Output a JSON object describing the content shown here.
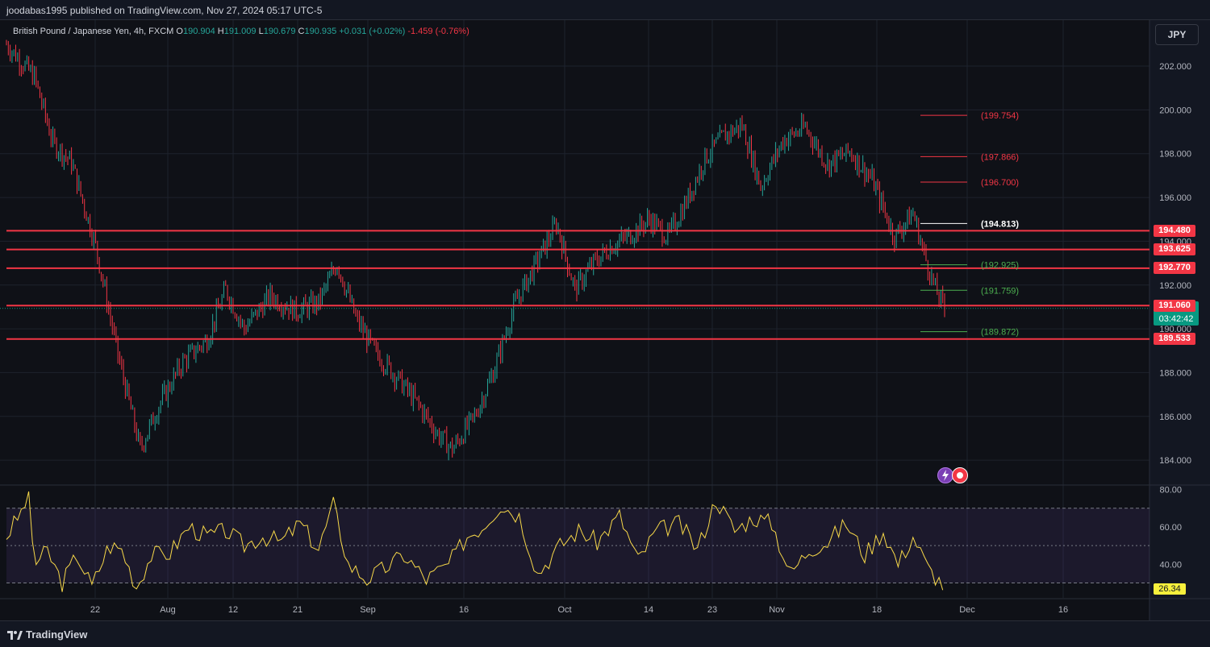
{
  "header": {
    "published_line": "joodabas1995 published on TradingView.com, Nov 27, 2024 05:17 UTC-5"
  },
  "legend": {
    "symbol": "British Pound / Japanese Yen, 4h, FXCM",
    "o_label": "O",
    "o_value": "190.904",
    "h_label": "H",
    "h_value": "191.009",
    "l_label": "L",
    "l_value": "190.679",
    "c_label": "C",
    "c_value": "190.935",
    "change": "+0.031 (+0.02%)",
    "extra": "-1.459 (-0.76%)"
  },
  "currency_button": "JPY",
  "footer": {
    "brand": "TradingView"
  },
  "colors": {
    "bg": "#0f1117",
    "up": "#26a69a",
    "down": "#f23645",
    "rsi": "#f7d849",
    "grid": "#1e222d"
  },
  "chart_data": {
    "type": "candlestick",
    "title": "British Pound / Japanese Yen, 4h, FXCM",
    "ylim": [
      182.9,
      204.1
    ],
    "y_ticks": [
      "202.000",
      "200.000",
      "198.000",
      "196.000",
      "194.000",
      "192.000",
      "190.000",
      "188.000",
      "186.000",
      "184.000"
    ],
    "x_ticks": [
      "22",
      "Aug",
      "12",
      "21",
      "Sep",
      "16",
      "Oct",
      "14",
      "23",
      "Nov",
      "18",
      "Dec",
      "16"
    ],
    "close_path": [
      [
        0,
        203.0
      ],
      [
        15,
        201.5
      ],
      [
        25,
        198.5
      ],
      [
        35,
        197.6
      ],
      [
        48,
        193.8
      ],
      [
        60,
        188.8
      ],
      [
        72,
        184.5
      ],
      [
        82,
        186.5
      ],
      [
        95,
        188.5
      ],
      [
        108,
        189.5
      ],
      [
        118,
        191.8
      ],
      [
        128,
        190.0
      ],
      [
        142,
        191.5
      ],
      [
        156,
        190.8
      ],
      [
        168,
        191.2
      ],
      [
        178,
        193.0
      ],
      [
        188,
        190.5
      ],
      [
        198,
        189.0
      ],
      [
        210,
        187.8
      ],
      [
        222,
        186.5
      ],
      [
        232,
        185.2
      ],
      [
        240,
        184.5
      ],
      [
        252,
        186.0
      ],
      [
        262,
        188.0
      ],
      [
        274,
        191.2
      ],
      [
        284,
        192.8
      ],
      [
        296,
        194.8
      ],
      [
        306,
        191.8
      ],
      [
        316,
        193.0
      ],
      [
        326,
        193.8
      ],
      [
        336,
        194.3
      ],
      [
        346,
        195.0
      ],
      [
        356,
        194.2
      ],
      [
        366,
        195.8
      ],
      [
        376,
        197.8
      ],
      [
        386,
        198.8
      ],
      [
        396,
        199.3
      ],
      [
        406,
        196.5
      ],
      [
        418,
        198.6
      ],
      [
        430,
        199.2
      ],
      [
        442,
        197.5
      ],
      [
        454,
        198.1
      ],
      [
        466,
        196.8
      ],
      [
        478,
        194.2
      ],
      [
        488,
        195.3
      ],
      [
        494,
        193.4
      ],
      [
        500,
        191.8
      ],
      [
        505,
        190.9
      ]
    ],
    "candle_count": 505,
    "horizontal_levels": [
      {
        "label": "194.480",
        "value": 194.48
      },
      {
        "label": "193.625",
        "value": 193.625
      },
      {
        "label": "192.770",
        "value": 192.77
      },
      {
        "label": "191.060",
        "value": 191.06
      },
      {
        "label": "189.533",
        "value": 189.533
      }
    ],
    "short_levels": [
      {
        "label": "(199.754)",
        "value": 199.754,
        "color": "#f23645"
      },
      {
        "label": "(197.866)",
        "value": 197.866,
        "color": "#f23645"
      },
      {
        "label": "(196.700)",
        "value": 196.7,
        "color": "#f23645"
      },
      {
        "label": "(194.813)",
        "value": 194.813,
        "color": "#ffffff"
      },
      {
        "label": "(192.925)",
        "value": 192.925,
        "color": "#4caf50"
      },
      {
        "label": "(191.759)",
        "value": 191.759,
        "color": "#4caf50"
      },
      {
        "label": "(189.872)",
        "value": 189.872,
        "color": "#4caf50"
      }
    ],
    "current_price": {
      "label": "190.935",
      "countdown": "03:42:42",
      "value": 190.935
    },
    "rsi": {
      "ylim": [
        22,
        82
      ],
      "y_ticks": [
        "80.00",
        "60.00",
        "40.00"
      ],
      "bands": [
        30,
        50,
        70
      ],
      "last_label": "26.34",
      "path": [
        [
          0,
          55
        ],
        [
          8,
          68
        ],
        [
          12,
          78
        ],
        [
          15,
          40
        ],
        [
          22,
          47
        ],
        [
          30,
          30
        ],
        [
          38,
          45
        ],
        [
          46,
          28
        ],
        [
          55,
          50
        ],
        [
          62,
          48
        ],
        [
          70,
          28
        ],
        [
          78,
          45
        ],
        [
          88,
          46
        ],
        [
          98,
          60
        ],
        [
          108,
          55
        ],
        [
          118,
          58
        ],
        [
          128,
          50
        ],
        [
          138,
          55
        ],
        [
          148,
          52
        ],
        [
          158,
          62
        ],
        [
          168,
          48
        ],
        [
          176,
          72
        ],
        [
          184,
          40
        ],
        [
          194,
          32
        ],
        [
          204,
          38
        ],
        [
          214,
          45
        ],
        [
          226,
          32
        ],
        [
          238,
          40
        ],
        [
          248,
          55
        ],
        [
          256,
          60
        ],
        [
          266,
          72
        ],
        [
          276,
          66
        ],
        [
          286,
          35
        ],
        [
          298,
          50
        ],
        [
          308,
          58
        ],
        [
          318,
          52
        ],
        [
          330,
          66
        ],
        [
          340,
          42
        ],
        [
          350,
          58
        ],
        [
          362,
          62
        ],
        [
          372,
          48
        ],
        [
          382,
          75
        ],
        [
          392,
          58
        ],
        [
          402,
          65
        ],
        [
          412,
          62
        ],
        [
          422,
          35
        ],
        [
          432,
          48
        ],
        [
          442,
          52
        ],
        [
          452,
          62
        ],
        [
          462,
          45
        ],
        [
          472,
          58
        ],
        [
          480,
          40
        ],
        [
          488,
          55
        ],
        [
          496,
          38
        ],
        [
          505,
          28
        ]
      ]
    }
  }
}
